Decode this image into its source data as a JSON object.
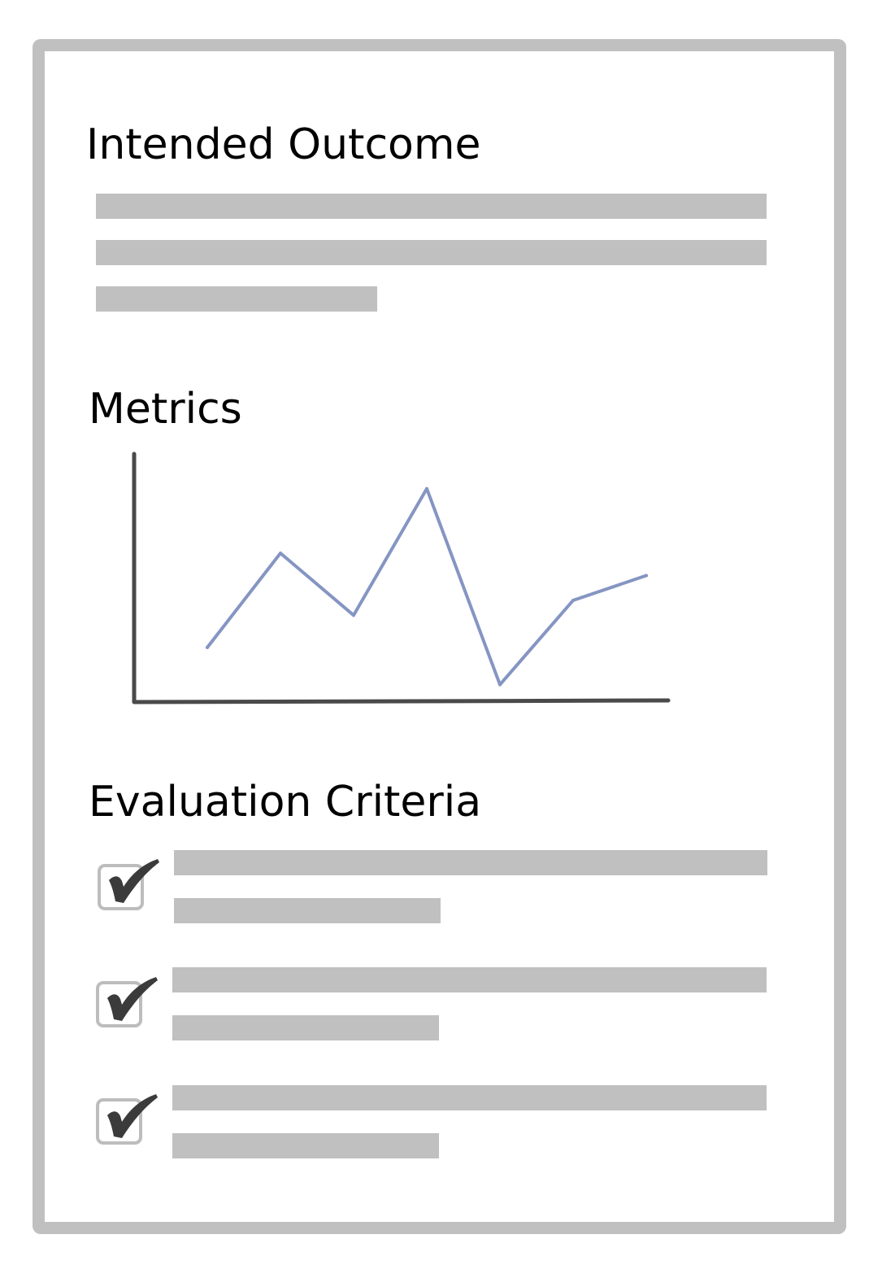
{
  "sections": {
    "intended_outcome": {
      "title": "Intended Outcome"
    },
    "metrics": {
      "title": "Metrics"
    },
    "evaluation_criteria": {
      "title": "Evaluation Criteria",
      "items": [
        {
          "checked": true
        },
        {
          "checked": true
        },
        {
          "checked": true
        }
      ]
    }
  },
  "colors": {
    "frame": "#c0c0c0",
    "placeholder_bar": "#c0c0c0",
    "axis": "#4a4a4a",
    "line_series": "#8595c3",
    "checkmark": "#3b3b3b"
  },
  "icons": [
    "checkmark-icon"
  ],
  "chart_data": {
    "type": "line",
    "title": "",
    "xlabel": "",
    "ylabel": "",
    "grid": false,
    "x": [
      1,
      2,
      3,
      4,
      5,
      6,
      7
    ],
    "series": [
      {
        "values": [
          2.2,
          6.0,
          3.5,
          8.6,
          0.7,
          4.1,
          5.1
        ]
      }
    ],
    "xlim": [
      0,
      7.3
    ],
    "ylim": [
      0,
      10
    ]
  }
}
